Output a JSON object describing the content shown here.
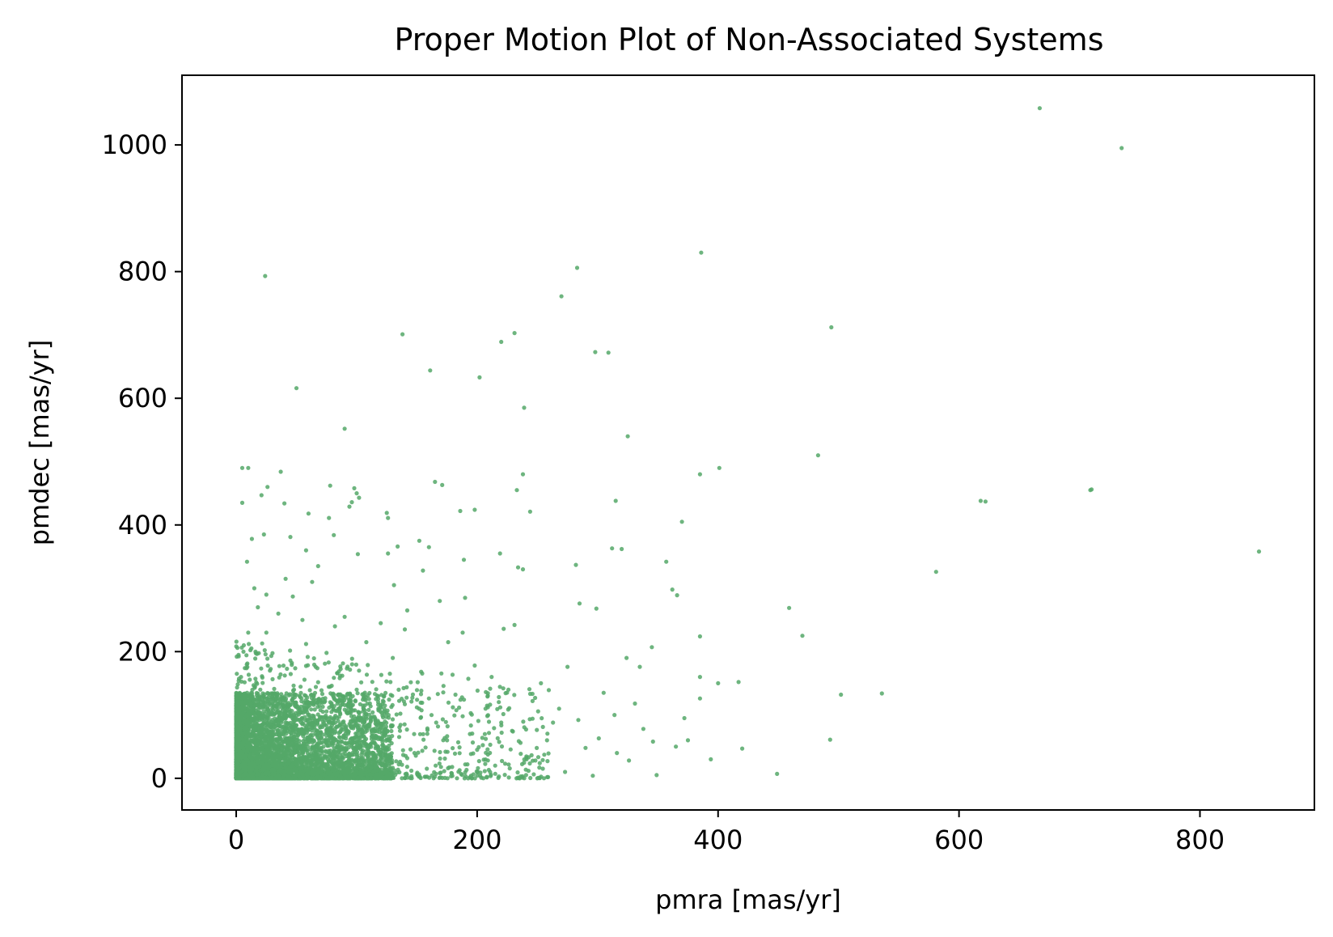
{
  "chart_data": {
    "type": "scatter",
    "title": "Proper Motion Plot of Non-Associated Systems",
    "xlabel": "pmra [mas/yr]",
    "ylabel": "pmdec [mas/yr]",
    "xlim": [
      -45,
      895
    ],
    "ylim": [
      -50,
      1110
    ],
    "xticks": [
      0,
      200,
      400,
      600,
      800
    ],
    "yticks": [
      0,
      200,
      400,
      600,
      800,
      1000
    ],
    "xtick_labels": [
      "0",
      "200",
      "400",
      "600",
      "800"
    ],
    "ytick_labels": [
      "0",
      "200",
      "400",
      "600",
      "800",
      "1000"
    ],
    "grid": false,
    "legend": "none",
    "color": "#55a868",
    "points": [
      [
        667,
        1058
      ],
      [
        735,
        995
      ],
      [
        386,
        830
      ],
      [
        283,
        806
      ],
      [
        24,
        793
      ],
      [
        270,
        761
      ],
      [
        494,
        712
      ],
      [
        138,
        701
      ],
      [
        231,
        703
      ],
      [
        220,
        689
      ],
      [
        298,
        673
      ],
      [
        309,
        672
      ],
      [
        161,
        644
      ],
      [
        202,
        633
      ],
      [
        50,
        616
      ],
      [
        239,
        585
      ],
      [
        90,
        552
      ],
      [
        325,
        540
      ],
      [
        483,
        510
      ],
      [
        401,
        490
      ],
      [
        5,
        490
      ],
      [
        10,
        490
      ],
      [
        385,
        480
      ],
      [
        238,
        480
      ],
      [
        37,
        484
      ],
      [
        165,
        468
      ],
      [
        171,
        463
      ],
      [
        78,
        462
      ],
      [
        26,
        460
      ],
      [
        98,
        458
      ],
      [
        709,
        455
      ],
      [
        710,
        456
      ],
      [
        233,
        455
      ],
      [
        100,
        450
      ],
      [
        102,
        443
      ],
      [
        21,
        447
      ],
      [
        618,
        438
      ],
      [
        622,
        437
      ],
      [
        315,
        438
      ],
      [
        96,
        436
      ],
      [
        5,
        435
      ],
      [
        40,
        434
      ],
      [
        244,
        421
      ],
      [
        60,
        418
      ],
      [
        125,
        419
      ],
      [
        126,
        411
      ],
      [
        198,
        424
      ],
      [
        186,
        422
      ],
      [
        94,
        429
      ],
      [
        77,
        411
      ],
      [
        370,
        405
      ],
      [
        23,
        385
      ],
      [
        81,
        384
      ],
      [
        13,
        378
      ],
      [
        45,
        381
      ],
      [
        152,
        375
      ],
      [
        134,
        366
      ],
      [
        101,
        354
      ],
      [
        126,
        355
      ],
      [
        219,
        355
      ],
      [
        849,
        358
      ],
      [
        312,
        363
      ],
      [
        320,
        362
      ],
      [
        357,
        342
      ],
      [
        58,
        360
      ],
      [
        160,
        365
      ],
      [
        9,
        342
      ],
      [
        234,
        333
      ],
      [
        238,
        330
      ],
      [
        155,
        328
      ],
      [
        282,
        337
      ],
      [
        581,
        326
      ],
      [
        189,
        345
      ],
      [
        63,
        310
      ],
      [
        131,
        305
      ],
      [
        15,
        300
      ],
      [
        41,
        315
      ],
      [
        68,
        335
      ],
      [
        362,
        298
      ],
      [
        366,
        289
      ],
      [
        47,
        287
      ],
      [
        25,
        290
      ],
      [
        169,
        280
      ],
      [
        190,
        285
      ],
      [
        285,
        276
      ],
      [
        299,
        268
      ],
      [
        459,
        269
      ],
      [
        90,
        255
      ],
      [
        120,
        245
      ],
      [
        35,
        260
      ],
      [
        231,
        242
      ],
      [
        222,
        236
      ],
      [
        470,
        225
      ],
      [
        385,
        224
      ],
      [
        188,
        230
      ],
      [
        140,
        235
      ],
      [
        345,
        207
      ],
      [
        324,
        190
      ],
      [
        335,
        176
      ],
      [
        417,
        152
      ],
      [
        400,
        150
      ],
      [
        385,
        160
      ],
      [
        536,
        134
      ],
      [
        502,
        132
      ],
      [
        394,
        30
      ],
      [
        420,
        47
      ],
      [
        493,
        61
      ],
      [
        449,
        7
      ],
      [
        349,
        5
      ],
      [
        296,
        4
      ],
      [
        273,
        10
      ],
      [
        14,
        124
      ],
      [
        58,
        212
      ],
      [
        102,
        170
      ],
      [
        75,
        198
      ],
      [
        45,
        186
      ],
      [
        128,
        152
      ],
      [
        160,
        126
      ],
      [
        150,
        112
      ],
      [
        188,
        98
      ],
      [
        207,
        110
      ],
      [
        226,
        140
      ],
      [
        246,
        122
      ],
      [
        263,
        88
      ],
      [
        301,
        63
      ],
      [
        316,
        40
      ],
      [
        331,
        118
      ],
      [
        346,
        58
      ],
      [
        372,
        95
      ],
      [
        385,
        126
      ],
      [
        258,
        60
      ],
      [
        275,
        176
      ],
      [
        284,
        92
      ],
      [
        305,
        135
      ],
      [
        229,
        75
      ],
      [
        241,
        30
      ],
      [
        200,
        45
      ],
      [
        215,
        20
      ],
      [
        175,
        60
      ],
      [
        170,
        18
      ],
      [
        148,
        40
      ],
      [
        135,
        22
      ],
      [
        118,
        62
      ],
      [
        110,
        30
      ],
      [
        95,
        90
      ],
      [
        85,
        45
      ],
      [
        70,
        120
      ],
      [
        60,
        80
      ],
      [
        52,
        35
      ],
      [
        40,
        100
      ],
      [
        30,
        60
      ],
      [
        20,
        140
      ],
      [
        12,
        20
      ],
      [
        8,
        80
      ],
      [
        4,
        160
      ],
      [
        3,
        40
      ],
      [
        25,
        230
      ],
      [
        18,
        270
      ],
      [
        55,
        250
      ],
      [
        82,
        240
      ],
      [
        108,
        215
      ],
      [
        130,
        190
      ],
      [
        142,
        265
      ],
      [
        176,
        215
      ],
      [
        198,
        178
      ],
      [
        212,
        160
      ],
      [
        253,
        150
      ],
      [
        268,
        110
      ],
      [
        290,
        48
      ],
      [
        326,
        28
      ],
      [
        365,
        50
      ],
      [
        375,
        60
      ],
      [
        338,
        78
      ],
      [
        314,
        100
      ],
      [
        166,
        88
      ],
      [
        182,
        132
      ],
      [
        194,
        70
      ],
      [
        220,
        88
      ],
      [
        236,
        56
      ],
      [
        252,
        24
      ],
      [
        120,
        112
      ],
      [
        100,
        140
      ],
      [
        88,
        162
      ],
      [
        66,
        176
      ],
      [
        48,
        140
      ],
      [
        34,
        118
      ],
      [
        28,
        170
      ],
      [
        16,
        200
      ],
      [
        10,
        230
      ],
      [
        6,
        105
      ],
      [
        2,
        15
      ],
      [
        6,
        5
      ]
    ]
  }
}
